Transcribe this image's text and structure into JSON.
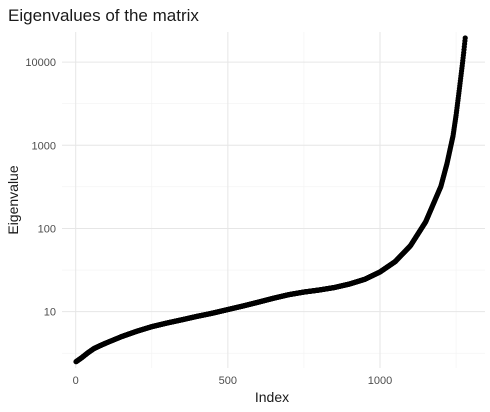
{
  "chart_data": {
    "type": "scatter",
    "title": "Eigenvalues of the matrix",
    "xlabel": "Index",
    "ylabel": "Eigenvalue",
    "x_scale": "linear",
    "y_scale": "log10",
    "xlim": [
      -45,
      1345
    ],
    "ylim": [
      2.1,
      23000
    ],
    "x_ticks": [
      0,
      500,
      1000
    ],
    "x_tick_labels": [
      "0",
      "500",
      "1000"
    ],
    "y_ticks": [
      10,
      100,
      1000,
      10000
    ],
    "y_tick_labels": [
      "10",
      "100",
      "1000",
      "10000"
    ],
    "grid": true,
    "legend": "none",
    "n_points": 1280,
    "point_color": "#000000",
    "series": [
      {
        "x": [
          1,
          20,
          40,
          60,
          80,
          100,
          150,
          200,
          250,
          300,
          350,
          400,
          450,
          500,
          550,
          600,
          650,
          700,
          750,
          800,
          850,
          900,
          950,
          1000,
          1050,
          1100,
          1150,
          1200,
          1220,
          1240,
          1250,
          1260,
          1270,
          1275,
          1280
        ],
        "y": [
          2.5,
          2.8,
          3.2,
          3.6,
          3.9,
          4.2,
          5.0,
          5.8,
          6.6,
          7.3,
          8.0,
          8.8,
          9.6,
          10.6,
          11.7,
          13.0,
          14.5,
          16.0,
          17.2,
          18.2,
          19.5,
          21.5,
          24.5,
          30.0,
          40.0,
          62.0,
          120.0,
          320.0,
          600.0,
          1300.0,
          2300.0,
          4500.0,
          9000.0,
          13000.0,
          19500.0
        ]
      }
    ]
  }
}
